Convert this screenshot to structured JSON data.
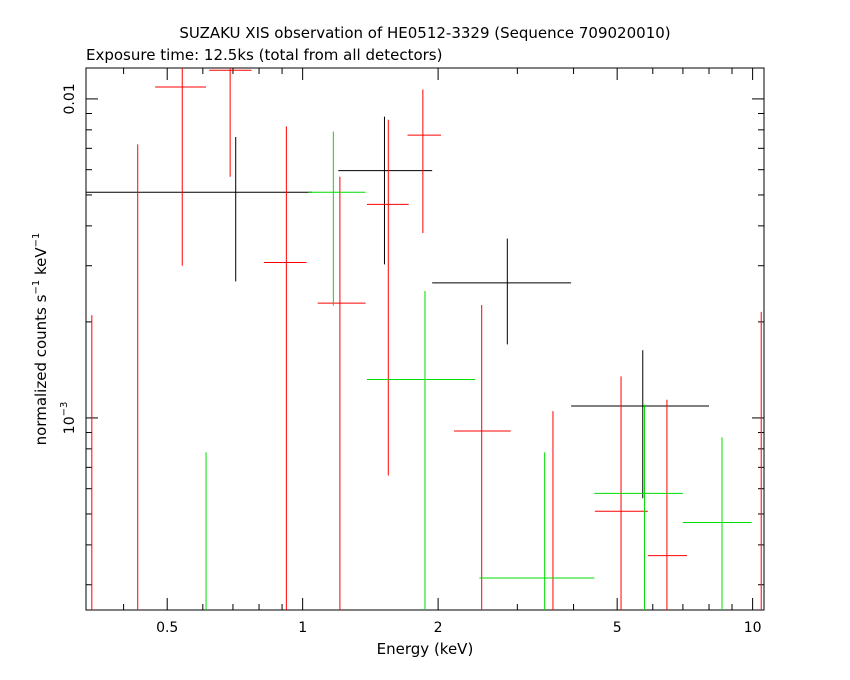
{
  "chart_data": {
    "type": "scatter",
    "title": "SUZAKU XIS observation of HE0512-3329 (Sequence 709020010)",
    "subtitle": "Exposure time: 12.5ks (total from all detectors)",
    "xlabel": "Energy (keV)",
    "ylabel": {
      "base": "normalized counts s",
      "sup1": "−1",
      "mid": " keV",
      "sup2": "−1"
    },
    "x_scale": "log",
    "y_scale": "log",
    "xlim": [
      0.33,
      10.6
    ],
    "ylim": [
      0.00025,
      0.0125
    ],
    "x_ticks": [
      {
        "value": 0.5,
        "label": "0.5"
      },
      {
        "value": 1,
        "label": "1"
      },
      {
        "value": 2,
        "label": "2"
      },
      {
        "value": 5,
        "label": "5"
      },
      {
        "value": 10,
        "label": "10"
      }
    ],
    "y_ticks": [
      {
        "value": 0.01,
        "label": "0.01"
      },
      {
        "value": 0.001,
        "label": "10",
        "sup": "−3"
      }
    ],
    "grid": false,
    "series": [
      {
        "color": "#000000",
        "points": [
          {
            "x": 0.71,
            "xlo": 0.33,
            "xhi": 1.05,
            "y": 0.0051,
            "ylo": 0.00268,
            "yhi": 0.0076
          },
          {
            "x": 1.52,
            "xlo": 1.2,
            "xhi": 1.94,
            "y": 0.00596,
            "ylo": 0.00303,
            "yhi": 0.0088
          },
          {
            "x": 2.85,
            "xlo": 1.94,
            "xhi": 3.95,
            "y": 0.00265,
            "ylo": 0.0017,
            "yhi": 0.00365
          },
          {
            "x": 5.7,
            "xlo": 3.95,
            "xhi": 8.0,
            "y": 0.00109,
            "ylo": 0.00056,
            "yhi": 0.00163
          }
        ]
      },
      {
        "color": "#ff0000",
        "points": [
          {
            "x": 0.34,
            "xlo": 0.34,
            "xhi": 0.34,
            "y": 0.00044,
            "ylo": 0.00025,
            "yhi": 0.0021
          },
          {
            "x": 0.43,
            "xlo": 0.43,
            "xhi": 0.43,
            "y": 0.00044,
            "ylo": 0.00025,
            "yhi": 0.0072
          },
          {
            "x": 0.54,
            "xlo": 0.47,
            "xhi": 0.61,
            "y": 0.0109,
            "ylo": 0.003,
            "yhi": 0.0125
          },
          {
            "x": 0.69,
            "xlo": 0.62,
            "xhi": 0.77,
            "y": 0.0123,
            "ylo": 0.0057,
            "yhi": 0.0125
          },
          {
            "x": 0.92,
            "xlo": 0.82,
            "xhi": 1.02,
            "y": 0.00307,
            "ylo": 0.00025,
            "yhi": 0.0082
          },
          {
            "x": 1.21,
            "xlo": 1.08,
            "xhi": 1.38,
            "y": 0.00229,
            "ylo": 0.00025,
            "yhi": 0.0057
          },
          {
            "x": 1.55,
            "xlo": 1.39,
            "xhi": 1.72,
            "y": 0.00467,
            "ylo": 0.00066,
            "yhi": 0.0086
          },
          {
            "x": 1.85,
            "xlo": 1.71,
            "xhi": 2.03,
            "y": 0.0077,
            "ylo": 0.0038,
            "yhi": 0.0107
          },
          {
            "x": 2.5,
            "xlo": 2.17,
            "xhi": 2.9,
            "y": 0.00091,
            "ylo": 0.00025,
            "yhi": 0.00226
          },
          {
            "x": 3.6,
            "xlo": 3.6,
            "xhi": 3.6,
            "y": 0.00044,
            "ylo": 0.00025,
            "yhi": 0.00105
          },
          {
            "x": 5.1,
            "xlo": 4.46,
            "xhi": 5.85,
            "y": 0.00051,
            "ylo": 0.00025,
            "yhi": 0.00135
          },
          {
            "x": 6.45,
            "xlo": 5.85,
            "xhi": 7.15,
            "y": 0.00037,
            "ylo": 0.00025,
            "yhi": 0.00114
          },
          {
            "x": 10.45,
            "xlo": 10.45,
            "xhi": 10.45,
            "y": 0.00044,
            "ylo": 0.00025,
            "yhi": 0.00215
          }
        ]
      },
      {
        "color": "#00dd00",
        "points": [
          {
            "x": 0.61,
            "xlo": 0.61,
            "xhi": 0.61,
            "y": 0.00044,
            "ylo": 0.00025,
            "yhi": 0.00078
          },
          {
            "x": 1.17,
            "xlo": 1.03,
            "xhi": 1.38,
            "y": 0.0051,
            "ylo": 0.00225,
            "yhi": 0.0079
          },
          {
            "x": 1.87,
            "xlo": 1.39,
            "xhi": 2.42,
            "y": 0.00132,
            "ylo": 0.00025,
            "yhi": 0.0025
          },
          {
            "x": 3.45,
            "xlo": 2.47,
            "xhi": 4.45,
            "y": 0.000315,
            "ylo": 0.00025,
            "yhi": 0.00078
          },
          {
            "x": 5.75,
            "xlo": 4.45,
            "xhi": 7.0,
            "y": 0.00058,
            "ylo": 0.00025,
            "yhi": 0.0011
          },
          {
            "x": 8.55,
            "xlo": 7.0,
            "xhi": 9.95,
            "y": 0.00047,
            "ylo": 0.00025,
            "yhi": 0.00087
          }
        ]
      }
    ]
  }
}
